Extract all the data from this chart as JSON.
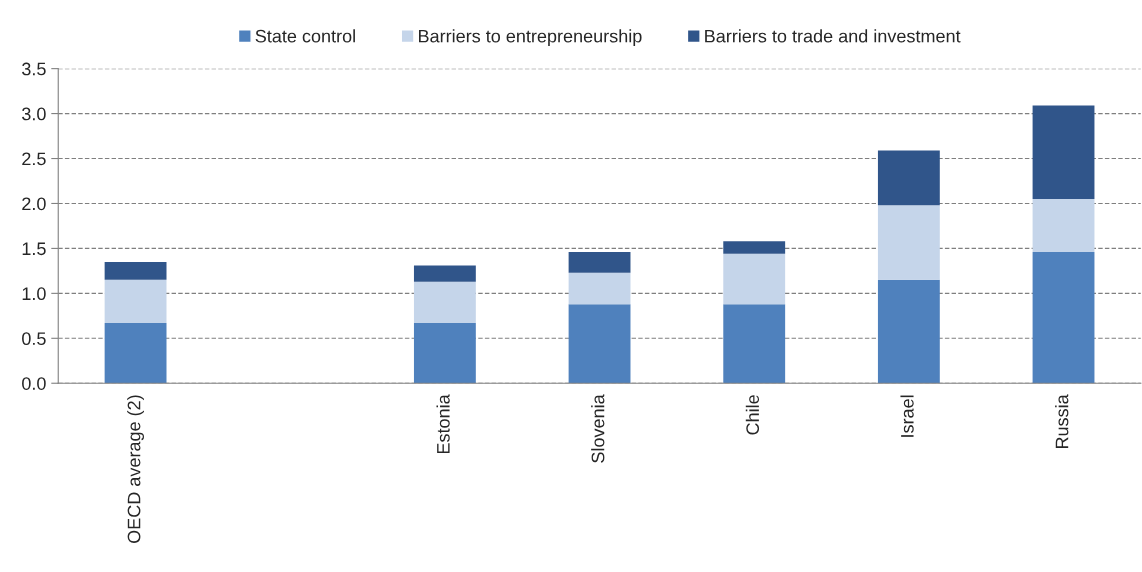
{
  "chart_data": {
    "type": "bar",
    "stacked": true,
    "categories": [
      "OECD average (2)",
      null,
      "Estonia",
      "Slovenia",
      "Chile",
      "Israel",
      "Russia"
    ],
    "series": [
      {
        "name": "State control",
        "color": "#4f81bd",
        "values": [
          0.67,
          null,
          0.67,
          0.88,
          0.88,
          1.15,
          1.46
        ]
      },
      {
        "name": "Barriers to entrepreneurship",
        "color": "#c5d5ea",
        "values": [
          0.48,
          null,
          0.46,
          0.35,
          0.56,
          0.83,
          0.59
        ]
      },
      {
        "name": "Barriers to trade and investment",
        "color": "#30558a",
        "values": [
          0.2,
          null,
          0.18,
          0.23,
          0.14,
          0.61,
          1.04
        ]
      }
    ],
    "ylim": [
      0,
      3.5
    ],
    "yticks": [
      {
        "value": 0,
        "label": "0.0"
      },
      {
        "value": 0.5,
        "label": "0.5"
      },
      {
        "value": 1,
        "label": "1.0"
      },
      {
        "value": 1.5,
        "label": "1.5"
      },
      {
        "value": 2,
        "label": "2.0"
      },
      {
        "value": 2.5,
        "label": "2.5"
      },
      {
        "value": 3,
        "label": "3.0"
      },
      {
        "value": 3.5,
        "label": "3.5"
      }
    ],
    "grid": "y",
    "legend": "top"
  }
}
